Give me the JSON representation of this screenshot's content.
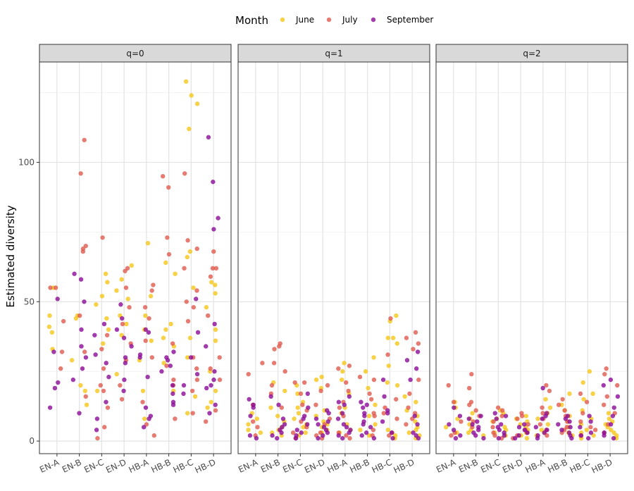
{
  "chart_data": {
    "type": "scatter",
    "ylabel": "Estimated diversity",
    "xlabel": "",
    "ylim": [
      -3,
      136
    ],
    "y_ticks": [
      0,
      50,
      100
    ],
    "grid": true,
    "legend": {
      "title": "Month",
      "position": "top",
      "entries": [
        {
          "name": "June",
          "color": "#F5C518"
        },
        {
          "name": "July",
          "color": "#E05A4F"
        },
        {
          "name": "September",
          "color": "#8B0A96"
        }
      ]
    },
    "categories": [
      "EN-A",
      "EN-B",
      "EN-C",
      "EN-D",
      "HB-A",
      "HB-B",
      "HB-C",
      "HB-D"
    ],
    "panels": [
      {
        "label": "q=0",
        "points": {
          "EN-A": {
            "June": [
              41,
              39,
              45,
              55,
              33
            ],
            "July": [
              43,
              26,
              55,
              55,
              32
            ],
            "September": [
              12,
              21,
              19,
              32,
              51
            ]
          },
          "EN-B": {
            "June": [
              13,
              29,
              45,
              44,
              20,
              18
            ],
            "July": [
              108,
              96,
              70,
              69,
              68,
              45,
              32,
              16
            ],
            "September": [
              60,
              58,
              50,
              40,
              34,
              30,
              26,
              22,
              10
            ]
          },
          "EN-C": {
            "June": [
              60,
              57,
              52,
              49,
              44,
              40,
              35,
              18
            ],
            "July": [
              73,
              38,
              33,
              26,
              20,
              18,
              12,
              5,
              1
            ],
            "September": [
              42,
              38,
              31,
              28,
              23,
              14,
              8,
              4
            ]
          },
          "EN-D": {
            "June": [
              63,
              58,
              54,
              51,
              45,
              42,
              38,
              24
            ],
            "July": [
              62,
              61,
              55,
              48,
              42,
              35,
              29,
              20,
              15
            ],
            "September": [
              49,
              44,
              40,
              37,
              34,
              30,
              28,
              22,
              18
            ]
          },
          "HB-A": {
            "June": [
              71,
              52,
              45,
              40,
              36,
              29,
              18,
              8
            ],
            "July": [
              56,
              54,
              48,
              44,
              36,
              30,
              14,
              6,
              2
            ],
            "September": [
              40,
              39,
              31,
              30,
              23,
              12,
              9,
              8,
              5
            ]
          },
          "HB-B": {
            "June": [
              64,
              60,
              42,
              40,
              37,
              34,
              28,
              18
            ],
            "July": [
              95,
              91,
              73,
              67,
              35,
              27,
              22,
              20,
              8
            ],
            "September": [
              32,
              30,
              29,
              27,
              25,
              20,
              17,
              14,
              13
            ]
          },
          "HB-C": {
            "June": [
              129,
              124,
              121,
              112,
              68,
              66,
              55,
              37,
              30,
              16,
              10
            ],
            "July": [
              96,
              72,
              69,
              62,
              54,
              50,
              48,
              43,
              30,
              26,
              22,
              18,
              10
            ],
            "September": [
              51,
              39,
              30,
              24,
              20,
              17
            ]
          },
          "HB-D": {
            "June": [
              57,
              56,
              53,
              48,
              40,
              36,
              25,
              18,
              14,
              12
            ],
            "July": [
              68,
              62,
              62,
              59,
              45,
              30,
              26,
              22,
              11,
              7
            ],
            "September": [
              109,
              93,
              80,
              76,
              42,
              34,
              25,
              22,
              20,
              19,
              13,
              10
            ]
          }
        }
      },
      {
        "label": "q=1",
        "points": {
          "EN-A": {
            "June": [
              10,
              8,
              6,
              4,
              3
            ],
            "July": [
              28,
              24,
              13,
              7,
              5,
              2
            ],
            "September": [
              15,
              13,
              12,
              9,
              2,
              1
            ]
          },
          "EN-B": {
            "June": [
              21,
              18,
              12,
              9,
              7,
              5,
              4,
              3,
              2
            ],
            "July": [
              35,
              34,
              33,
              28,
              25,
              20,
              17,
              12
            ],
            "September": [
              16,
              13,
              8,
              6,
              5,
              4,
              3,
              2,
              1
            ]
          },
          "EN-C": {
            "June": [
              20,
              17,
              14,
              12,
              10,
              8,
              6,
              5,
              3,
              2
            ],
            "July": [
              21,
              21,
              17,
              13,
              11,
              7,
              5,
              3,
              1
            ],
            "September": [
              17,
              12,
              9,
              8,
              6,
              4,
              3,
              2,
              1
            ]
          },
          "EN-D": {
            "June": [
              23,
              22,
              19,
              11,
              9,
              7,
              6,
              5,
              4,
              3
            ],
            "July": [
              20,
              18,
              13,
              8,
              6,
              3,
              2,
              1
            ],
            "September": [
              11,
              10,
              8,
              7,
              6,
              5,
              4,
              3,
              2,
              1
            ]
          },
          "HB-A": {
            "June": [
              28,
              25,
              22,
              17,
              12,
              10,
              6,
              4,
              3
            ],
            "July": [
              27,
              26,
              21,
              18,
              14,
              12,
              9,
              3,
              2,
              1
            ],
            "September": [
              16,
              14,
              13,
              10,
              8,
              6,
              5,
              4,
              3,
              2,
              1
            ]
          },
          "HB-B": {
            "June": [
              30,
              25,
              19,
              13,
              9,
              6,
              4,
              2
            ],
            "July": [
              23,
              22,
              17,
              15,
              10,
              9,
              4,
              2
            ],
            "September": [
              14,
              13,
              12,
              10,
              9,
              7,
              6,
              5,
              3,
              2,
              1
            ]
          },
          "HB-C": {
            "June": [
              45,
              43,
              37,
              37,
              35,
              27,
              21,
              20,
              4,
              2,
              1
            ],
            "July": [
              44,
              31,
              15,
              12,
              10,
              8,
              3,
              2
            ],
            "September": [
              22,
              16,
              11,
              10,
              7,
              3,
              1
            ]
          },
          "HB-D": {
            "June": [
              16,
              14,
              11,
              9,
              7,
              5,
              4,
              3,
              2,
              1
            ],
            "July": [
              39,
              37,
              35,
              33,
              22,
              17,
              12,
              10,
              8,
              6
            ],
            "September": [
              32,
              29,
              26,
              22,
              9,
              6,
              3,
              2,
              1
            ]
          }
        }
      },
      {
        "label": "q=2",
        "points": {
          "EN-A": {
            "June": [
              14,
              12,
              8,
              5,
              3
            ],
            "July": [
              20,
              14,
              7,
              3,
              2
            ],
            "September": [
              12,
              9,
              6,
              4,
              2,
              1
            ]
          },
          "EN-B": {
            "June": [
              10,
              8,
              6,
              4,
              3,
              2
            ],
            "July": [
              24,
              19,
              14,
              13,
              11,
              9,
              7,
              5
            ],
            "September": [
              9,
              8,
              7,
              6,
              5,
              4,
              3,
              2,
              1
            ]
          },
          "EN-C": {
            "June": [
              11,
              10,
              8,
              7,
              5,
              4,
              3,
              2
            ],
            "July": [
              12,
              11,
              9,
              7,
              5,
              3,
              2,
              1
            ],
            "September": [
              10,
              9,
              8,
              6,
              5,
              4,
              3,
              2,
              1
            ]
          },
          "EN-D": {
            "June": [
              9,
              8,
              7,
              6,
              5,
              4,
              3,
              2,
              1
            ],
            "July": [
              10,
              9,
              8,
              6,
              4,
              3,
              2,
              1
            ],
            "September": [
              6,
              5,
              4,
              3,
              2,
              1
            ]
          },
          "HB-A": {
            "June": [
              15,
              12,
              10,
              8,
              6,
              4,
              3,
              2
            ],
            "July": [
              20,
              18,
              12,
              10,
              8,
              6,
              4,
              2
            ],
            "September": [
              19,
              10,
              9,
              8,
              5,
              4,
              3,
              2,
              1
            ]
          },
          "HB-B": {
            "June": [
              17,
              13,
              11,
              9,
              7,
              5,
              3,
              2
            ],
            "July": [
              15,
              13,
              11,
              9,
              7,
              5,
              4,
              3
            ],
            "September": [
              9,
              8,
              7,
              6,
              5,
              4,
              3,
              2,
              1
            ]
          },
          "HB-C": {
            "June": [
              25,
              21,
              17,
              15,
              11,
              8,
              6,
              4,
              3,
              2,
              1
            ],
            "July": [
              17,
              14,
              10,
              7,
              5,
              4,
              2
            ],
            "September": [
              9,
              7,
              5,
              3,
              2,
              1
            ]
          },
          "HB-D": {
            "June": [
              10,
              8,
              7,
              6,
              5,
              4,
              3,
              2,
              1
            ],
            "July": [
              26,
              24,
              20,
              16,
              13,
              10,
              6,
              3
            ],
            "September": [
              22,
              20,
              16,
              12,
              9,
              6,
              3,
              2,
              1
            ]
          }
        }
      }
    ]
  }
}
